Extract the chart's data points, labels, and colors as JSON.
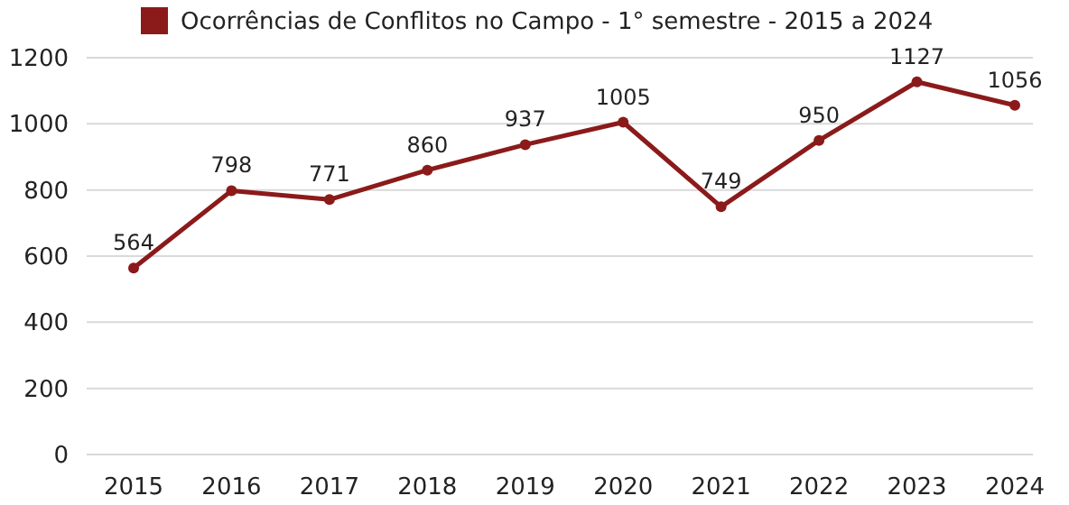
{
  "chart_data": {
    "type": "line",
    "categories": [
      "2015",
      "2016",
      "2017",
      "2018",
      "2019",
      "2020",
      "2021",
      "2022",
      "2023",
      "2024"
    ],
    "series": [
      {
        "name": "Ocorrências de Conflitos no Campo - 1° semestre - 2015 a 2024",
        "color": "#8b1a1a",
        "values": [
          564,
          798,
          771,
          860,
          937,
          1005,
          749,
          950,
          1127,
          1056
        ]
      }
    ],
    "ylim": [
      0,
      1200
    ],
    "yticks": [
      0,
      200,
      400,
      600,
      800,
      1000,
      1200
    ],
    "grid": "y",
    "legend": "top",
    "data_labels": true,
    "marker": "circle",
    "line_style": "solid"
  }
}
